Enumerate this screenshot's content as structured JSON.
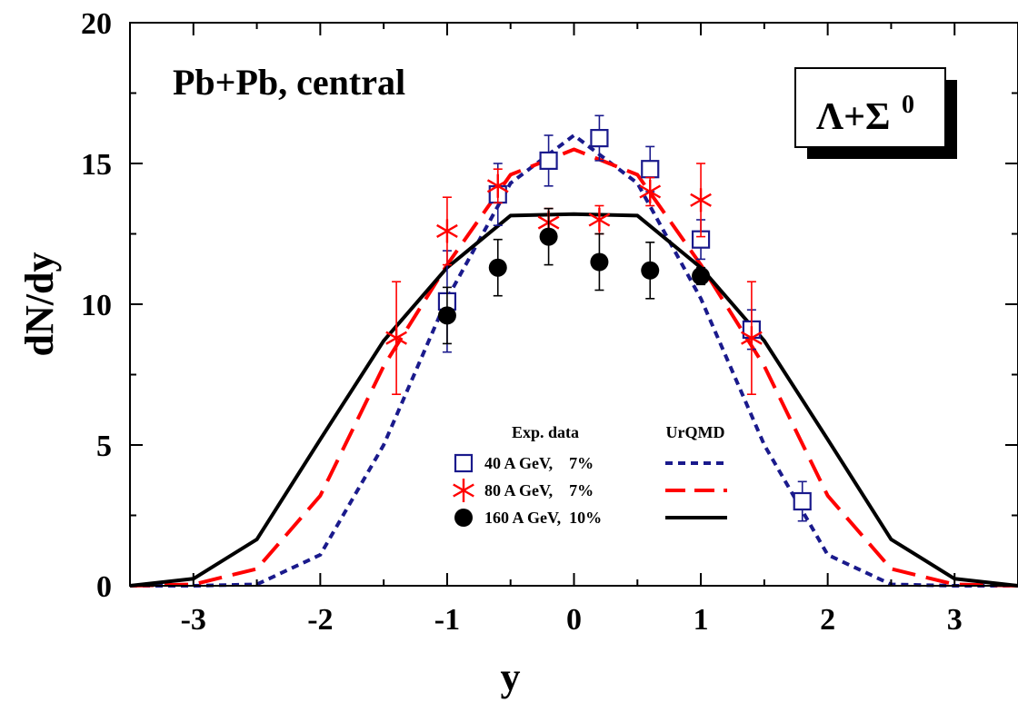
{
  "chart_data": {
    "type": "scatter",
    "title": "",
    "xlabel": "y",
    "ylabel": "dN/dy",
    "xlim": [
      -3.5,
      3.5
    ],
    "ylim": [
      0,
      20
    ],
    "x_ticks": [
      -3,
      -2,
      -1,
      0,
      1,
      2,
      3
    ],
    "x_tick_labels": [
      "-3",
      "-2",
      "-1",
      "0",
      "1",
      "2",
      "3"
    ],
    "y_ticks": [
      0,
      5,
      10,
      15,
      20
    ],
    "y_tick_labels": [
      "0",
      "5",
      "10",
      "15",
      "20"
    ],
    "grid": false,
    "annotations": {
      "system": "Pb+Pb, central",
      "particle": "Λ+Σ",
      "particle_superscript": "0"
    },
    "legend": {
      "placement": "lower-center",
      "data_header": "Exp. data",
      "model_header": "UrQMD",
      "entries": [
        {
          "label": "40 A GeV,    7%",
          "marker": "open-square",
          "line": "short-dash",
          "color": "#1a1a8c"
        },
        {
          "label": "80 A GeV,    7%",
          "marker": "asterisk",
          "line": "long-dash",
          "color": "#ff0000"
        },
        {
          "label": "160 A GeV,  10%",
          "marker": "filled-circle",
          "line": "solid",
          "color": "#000000"
        }
      ]
    },
    "series": [
      {
        "name": "40 A GeV,    7%",
        "kind": "data",
        "marker": "open-square",
        "color": "#1a1a8c",
        "points": [
          {
            "x": -1.0,
            "y": 10.1,
            "err": 1.8
          },
          {
            "x": -0.6,
            "y": 13.9,
            "err": 1.1
          },
          {
            "x": -0.2,
            "y": 15.1,
            "err": 0.9
          },
          {
            "x": 0.2,
            "y": 15.9,
            "err": 0.8
          },
          {
            "x": 0.6,
            "y": 14.8,
            "err": 0.8
          },
          {
            "x": 1.0,
            "y": 12.3,
            "err": 0.7
          },
          {
            "x": 1.4,
            "y": 9.1,
            "err": 0.7
          },
          {
            "x": 1.8,
            "y": 3.0,
            "err": 0.7
          }
        ]
      },
      {
        "name": "80 A GeV,    7%",
        "kind": "data",
        "marker": "asterisk",
        "color": "#ff0000",
        "points": [
          {
            "x": -1.4,
            "y": 8.8,
            "err": 2.0
          },
          {
            "x": -1.0,
            "y": 12.6,
            "err": 1.2
          },
          {
            "x": -0.6,
            "y": 14.2,
            "err": 0.6
          },
          {
            "x": -0.2,
            "y": 12.9,
            "err": 0.5
          },
          {
            "x": 0.2,
            "y": 13.0,
            "err": 0.5
          },
          {
            "x": 0.6,
            "y": 14.0,
            "err": 0.5
          },
          {
            "x": 1.0,
            "y": 13.7,
            "err": 1.3
          },
          {
            "x": 1.4,
            "y": 8.8,
            "err": 2.0
          }
        ]
      },
      {
        "name": "160 A GeV,  10%",
        "kind": "data",
        "marker": "filled-circle",
        "color": "#000000",
        "points": [
          {
            "x": -1.0,
            "y": 9.6,
            "err": 1.0
          },
          {
            "x": -0.6,
            "y": 11.3,
            "err": 1.0
          },
          {
            "x": -0.2,
            "y": 12.4,
            "err": 1.0
          },
          {
            "x": 0.2,
            "y": 11.5,
            "err": 1.0
          },
          {
            "x": 0.6,
            "y": 11.2,
            "err": 1.0
          },
          {
            "x": 1.0,
            "y": 11.0,
            "err": 0.3
          }
        ]
      },
      {
        "name": "UrQMD 40 A GeV",
        "kind": "model",
        "line": "short-dash",
        "color": "#1a1a8c",
        "x": [
          -3.5,
          -3.0,
          -2.5,
          -2.0,
          -1.5,
          -1.0,
          -0.5,
          0.0,
          0.5,
          1.0,
          1.5,
          2.0,
          2.5,
          3.0,
          3.5
        ],
        "y": [
          0.0,
          0.0,
          0.05,
          1.1,
          5.0,
          10.2,
          14.3,
          16.0,
          14.3,
          10.2,
          5.0,
          1.1,
          0.05,
          0.0,
          0.0
        ]
      },
      {
        "name": "UrQMD 80 A GeV",
        "kind": "model",
        "line": "long-dash",
        "color": "#ff0000",
        "x": [
          -3.5,
          -3.0,
          -2.5,
          -2.0,
          -1.5,
          -1.0,
          -0.5,
          0.0,
          0.5,
          1.0,
          1.5,
          2.0,
          2.5,
          3.0,
          3.5
        ],
        "y": [
          0.0,
          0.05,
          0.6,
          3.2,
          7.8,
          11.4,
          14.6,
          15.5,
          14.6,
          11.4,
          7.8,
          3.2,
          0.6,
          0.05,
          0.0
        ]
      },
      {
        "name": "UrQMD 160 A GeV",
        "kind": "model",
        "line": "solid",
        "color": "#000000",
        "x": [
          -3.5,
          -3.0,
          -2.5,
          -2.0,
          -1.5,
          -1.0,
          -0.5,
          0.0,
          0.5,
          1.0,
          1.5,
          2.0,
          2.5,
          3.0,
          3.5
        ],
        "y": [
          0.0,
          0.25,
          1.65,
          5.2,
          8.7,
          11.3,
          13.15,
          13.2,
          13.15,
          11.3,
          8.7,
          5.2,
          1.65,
          0.25,
          0.0
        ]
      }
    ]
  }
}
